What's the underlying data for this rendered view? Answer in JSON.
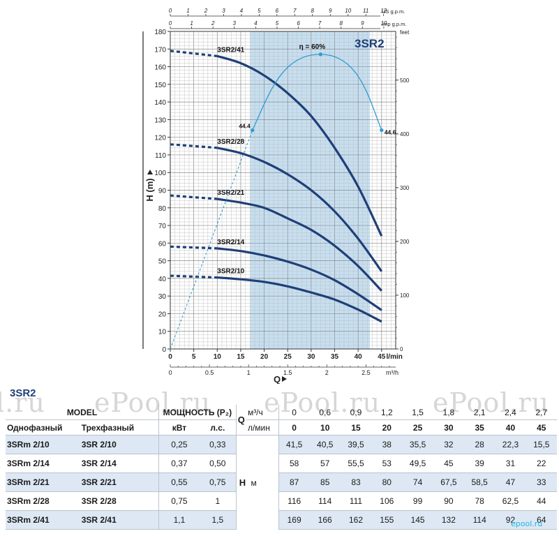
{
  "chart_data": {
    "type": "line",
    "title": "3SR2",
    "ylabel": "H (m)",
    "xlabel": "Q",
    "x_unit_lmin": "l/min",
    "x_unit_m3h": "m³/h",
    "top_unit_us": "US g.p.m.",
    "top_unit_imp": "Imp g.p.m.",
    "right_unit": "feet",
    "xlim": [
      0,
      48
    ],
    "ylim": [
      0,
      180
    ],
    "grid": true,
    "x_ticks_lmin": [
      "0",
      "5",
      "10",
      "15",
      "20",
      "25",
      "30",
      "35",
      "40",
      "45"
    ],
    "x_ticks_m3h": [
      "0",
      "0.5",
      "1",
      "1.5",
      "2",
      "2.5"
    ],
    "y_ticks": [
      "0",
      "10",
      "20",
      "30",
      "40",
      "50",
      "60",
      "70",
      "80",
      "90",
      "100",
      "110",
      "120",
      "130",
      "140",
      "150",
      "160",
      "170",
      "180"
    ],
    "right_ticks": [
      "0",
      "100",
      "200",
      "300",
      "400",
      "500"
    ],
    "us_ticks": [
      "0",
      "1",
      "2",
      "3",
      "4",
      "5",
      "6",
      "7",
      "8",
      "9",
      "10",
      "11",
      "12"
    ],
    "imp_ticks": [
      "0",
      "1",
      "2",
      "3",
      "4",
      "5",
      "6",
      "7",
      "8",
      "9",
      "10"
    ],
    "recommended_range_lmin": [
      17,
      42.5
    ],
    "series": [
      {
        "name": "3SR2/41",
        "x": [
          0,
          10,
          15,
          20,
          25,
          30,
          35,
          40,
          45
        ],
        "y": [
          169,
          166,
          162,
          155,
          145,
          132,
          114,
          92,
          64
        ]
      },
      {
        "name": "3SR2/28",
        "x": [
          0,
          10,
          15,
          20,
          25,
          30,
          35,
          40,
          45
        ],
        "y": [
          116,
          114,
          111,
          106,
          99,
          90,
          78,
          62.5,
          44
        ]
      },
      {
        "name": "3SR2/21",
        "x": [
          0,
          10,
          15,
          20,
          25,
          30,
          35,
          40,
          45
        ],
        "y": [
          87,
          85,
          83,
          80,
          74,
          67.5,
          58.5,
          47,
          33
        ]
      },
      {
        "name": "3SR2/14",
        "x": [
          0,
          10,
          15,
          20,
          25,
          30,
          35,
          40,
          45
        ],
        "y": [
          58,
          57,
          55.5,
          53,
          49.5,
          45,
          39,
          31,
          22
        ]
      },
      {
        "name": "3SR2/10",
        "x": [
          0,
          10,
          15,
          20,
          25,
          30,
          35,
          40,
          45
        ],
        "y": [
          41.5,
          40.5,
          39.5,
          38,
          35.5,
          32,
          28,
          22.3,
          15.5
        ]
      }
    ],
    "efficiency": {
      "label": "η = 60%",
      "points": [
        {
          "x": 17.5,
          "y": 124,
          "label": "44.4"
        },
        {
          "x": 32,
          "y": 167
        },
        {
          "x": 45,
          "y": 124,
          "label": "44.6"
        }
      ]
    }
  },
  "table": {
    "title": "3SR2",
    "h_model": "MODEL",
    "h_power": "МОЩНОСТЬ (P₂)",
    "h_q": "Q",
    "h_m3h": "м³/ч",
    "h_lmin": "л/мин",
    "h_single": "Однофазный",
    "h_three": "Трехфазный",
    "h_kw": "кВт",
    "h_hp": "л.с.",
    "h_label": "H",
    "h_unit": "м",
    "q_m3h": [
      "0",
      "0,6",
      "0,9",
      "1,2",
      "1,5",
      "1,8",
      "2,1",
      "2,4",
      "2,7"
    ],
    "q_lmin": [
      "0",
      "10",
      "15",
      "20",
      "25",
      "30",
      "35",
      "40",
      "45"
    ],
    "rows": [
      {
        "single": "3SRm 2/10",
        "three": "3SR 2/10",
        "kw": "0,25",
        "hp": "0,33",
        "h": [
          "41,5",
          "40,5",
          "39,5",
          "38",
          "35,5",
          "32",
          "28",
          "22,3",
          "15,5"
        ]
      },
      {
        "single": "3SRm 2/14",
        "three": "3SR 2/14",
        "kw": "0,37",
        "hp": "0,50",
        "h": [
          "58",
          "57",
          "55,5",
          "53",
          "49,5",
          "45",
          "39",
          "31",
          "22"
        ]
      },
      {
        "single": "3SRm 2/21",
        "three": "3SR 2/21",
        "kw": "0,55",
        "hp": "0,75",
        "h": [
          "87",
          "85",
          "83",
          "80",
          "74",
          "67,5",
          "58,5",
          "47",
          "33"
        ]
      },
      {
        "single": "3SRm 2/28",
        "three": "3SR 2/28",
        "kw": "0,75",
        "hp": "1",
        "h": [
          "116",
          "114",
          "111",
          "106",
          "99",
          "90",
          "78",
          "62,5",
          "44"
        ]
      },
      {
        "single": "3SRm 2/41",
        "three": "3SR 2/41",
        "kw": "1,1",
        "hp": "1,5",
        "h": [
          "169",
          "166",
          "162",
          "155",
          "145",
          "132",
          "114",
          "92",
          "64"
        ]
      }
    ]
  },
  "watermarks": [
    "l.ru",
    "ePool.ru",
    "ePool.ru",
    "ePool.ru"
  ],
  "logo": "epool.ru",
  "colors": {
    "curve": "#1f3f77",
    "efficiency": "#2f9bd3",
    "band": "#bcd9ef",
    "grid": "#aaaaaa"
  }
}
